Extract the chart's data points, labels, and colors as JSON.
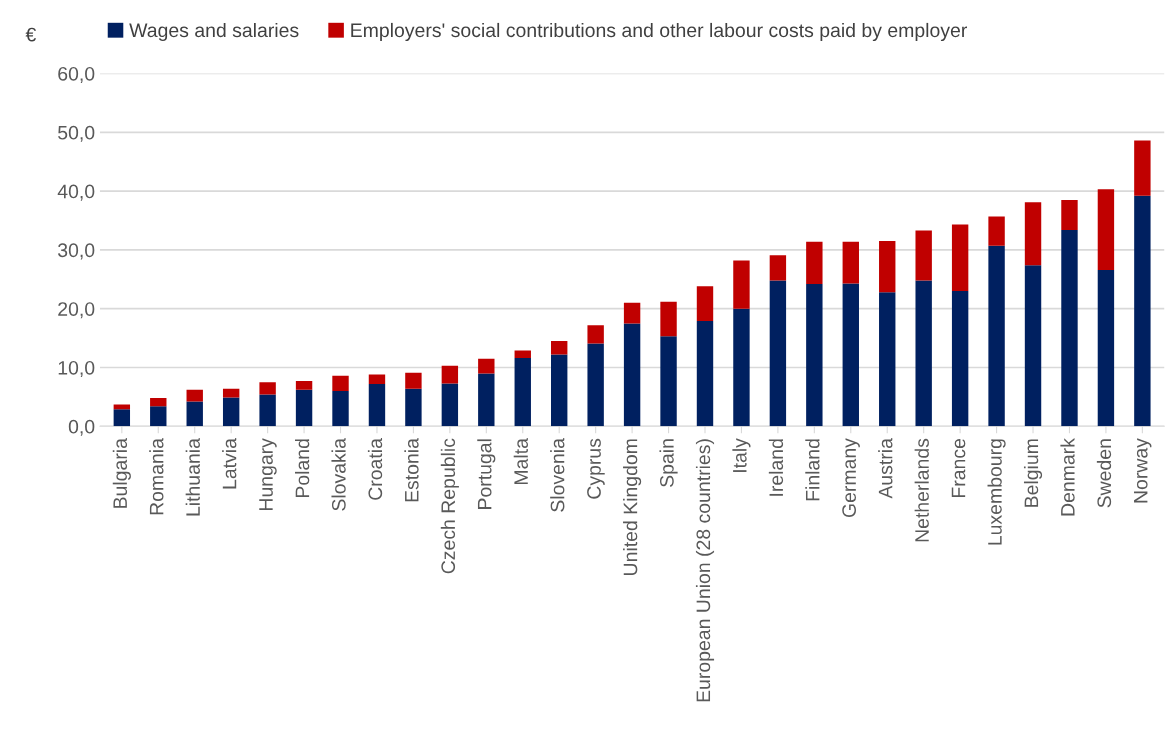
{
  "chart_data": {
    "type": "bar",
    "stacked": true,
    "ylabel": "€",
    "categories": [
      "Bulgaria",
      "Romania",
      "Lithuania",
      "Latvia",
      "Hungary",
      "Poland",
      "Slovakia",
      "Croatia",
      "Estonia",
      "Czech Republic",
      "Portugal",
      "Malta",
      "Slovenia",
      "Cyprus",
      "United Kingdom",
      "Spain",
      "European Union (28 countries)",
      "Italy",
      "Ireland",
      "Finland",
      "Germany",
      "Austria",
      "Netherlands",
      "France",
      "Luxembourg",
      "Belgium",
      "Denmark",
      "Sweden",
      "Norway"
    ],
    "series": [
      {
        "name": "Wages and salaries",
        "color": "#002060",
        "values": [
          2.9,
          3.4,
          4.2,
          4.9,
          5.4,
          6.2,
          6.0,
          7.2,
          6.4,
          7.3,
          9.0,
          11.6,
          12.2,
          14.1,
          17.5,
          15.3,
          17.9,
          20.0,
          24.8,
          24.2,
          24.3,
          22.8,
          24.8,
          23.0,
          30.7,
          27.4,
          33.4,
          26.6,
          39.2
        ]
      },
      {
        "name": "Employers' social contributions and other labour costs paid by employer",
        "color": "#c00000",
        "values": [
          0.8,
          1.4,
          2.0,
          1.5,
          2.1,
          1.5,
          2.6,
          1.6,
          2.7,
          3.0,
          2.5,
          1.3,
          2.3,
          3.1,
          3.5,
          5.9,
          5.9,
          8.2,
          4.3,
          7.2,
          7.1,
          8.7,
          8.5,
          11.3,
          5.0,
          10.7,
          5.1,
          13.7,
          9.4
        ]
      }
    ],
    "ylim": [
      0,
      60
    ],
    "yticks": [
      {
        "value": 0,
        "label": "0,0"
      },
      {
        "value": 10,
        "label": "10,0"
      },
      {
        "value": 20,
        "label": "20,0"
      },
      {
        "value": 30,
        "label": "30,0"
      },
      {
        "value": 40,
        "label": "40,0"
      },
      {
        "value": 50,
        "label": "50,0"
      },
      {
        "value": 60,
        "label": "60,0"
      }
    ],
    "grid": "y",
    "legend": "top left"
  }
}
